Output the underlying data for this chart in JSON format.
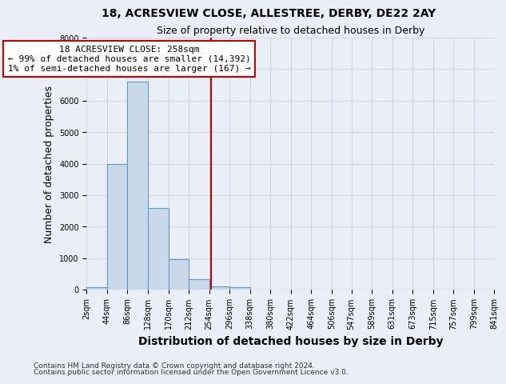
{
  "title": "18, ACRESVIEW CLOSE, ALLESTREE, DERBY, DE22 2AY",
  "subtitle": "Size of property relative to detached houses in Derby",
  "xlabel": "Distribution of detached houses by size in Derby",
  "ylabel": "Number of detached properties",
  "footnote1": "Contains HM Land Registry data © Crown copyright and database right 2024.",
  "footnote2": "Contains public sector information licensed under the Open Government Licence v3.0.",
  "bar_edges": [
    2,
    44,
    86,
    128,
    170,
    212,
    254,
    296,
    338,
    380,
    422,
    464,
    506,
    547,
    589,
    631,
    673,
    715,
    757,
    799,
    841
  ],
  "bar_heights": [
    65,
    4000,
    6600,
    2600,
    970,
    330,
    110,
    80,
    0,
    0,
    0,
    0,
    0,
    0,
    0,
    0,
    0,
    0,
    0,
    0
  ],
  "bar_color": "#c9d9e8",
  "bar_edge_color": "#5b9bd5",
  "property_line_x": 258,
  "property_line_color": "#cc0000",
  "annotation_text": "18 ACRESVIEW CLOSE: 258sqm\n← 99% of detached houses are smaller (14,392)\n1% of semi-detached houses are larger (167) →",
  "annotation_box_color": "#cc0000",
  "annotation_box_fill": "#ffffff",
  "ylim": [
    0,
    8000
  ],
  "yticks": [
    0,
    1000,
    2000,
    3000,
    4000,
    5000,
    6000,
    7000,
    8000
  ],
  "xtick_labels": [
    "2sqm",
    "44sqm",
    "86sqm",
    "128sqm",
    "170sqm",
    "212sqm",
    "254sqm",
    "296sqm",
    "338sqm",
    "380sqm",
    "422sqm",
    "464sqm",
    "506sqm",
    "547sqm",
    "589sqm",
    "631sqm",
    "673sqm",
    "715sqm",
    "757sqm",
    "799sqm",
    "841sqm"
  ],
  "title_fontsize": 10,
  "subtitle_fontsize": 9,
  "axis_label_fontsize": 9,
  "xlabel_fontsize": 10,
  "tick_fontsize": 7,
  "footnote_fontsize": 6.5,
  "grid_color": "#d0d8e8",
  "bg_color": "#eaeff7"
}
